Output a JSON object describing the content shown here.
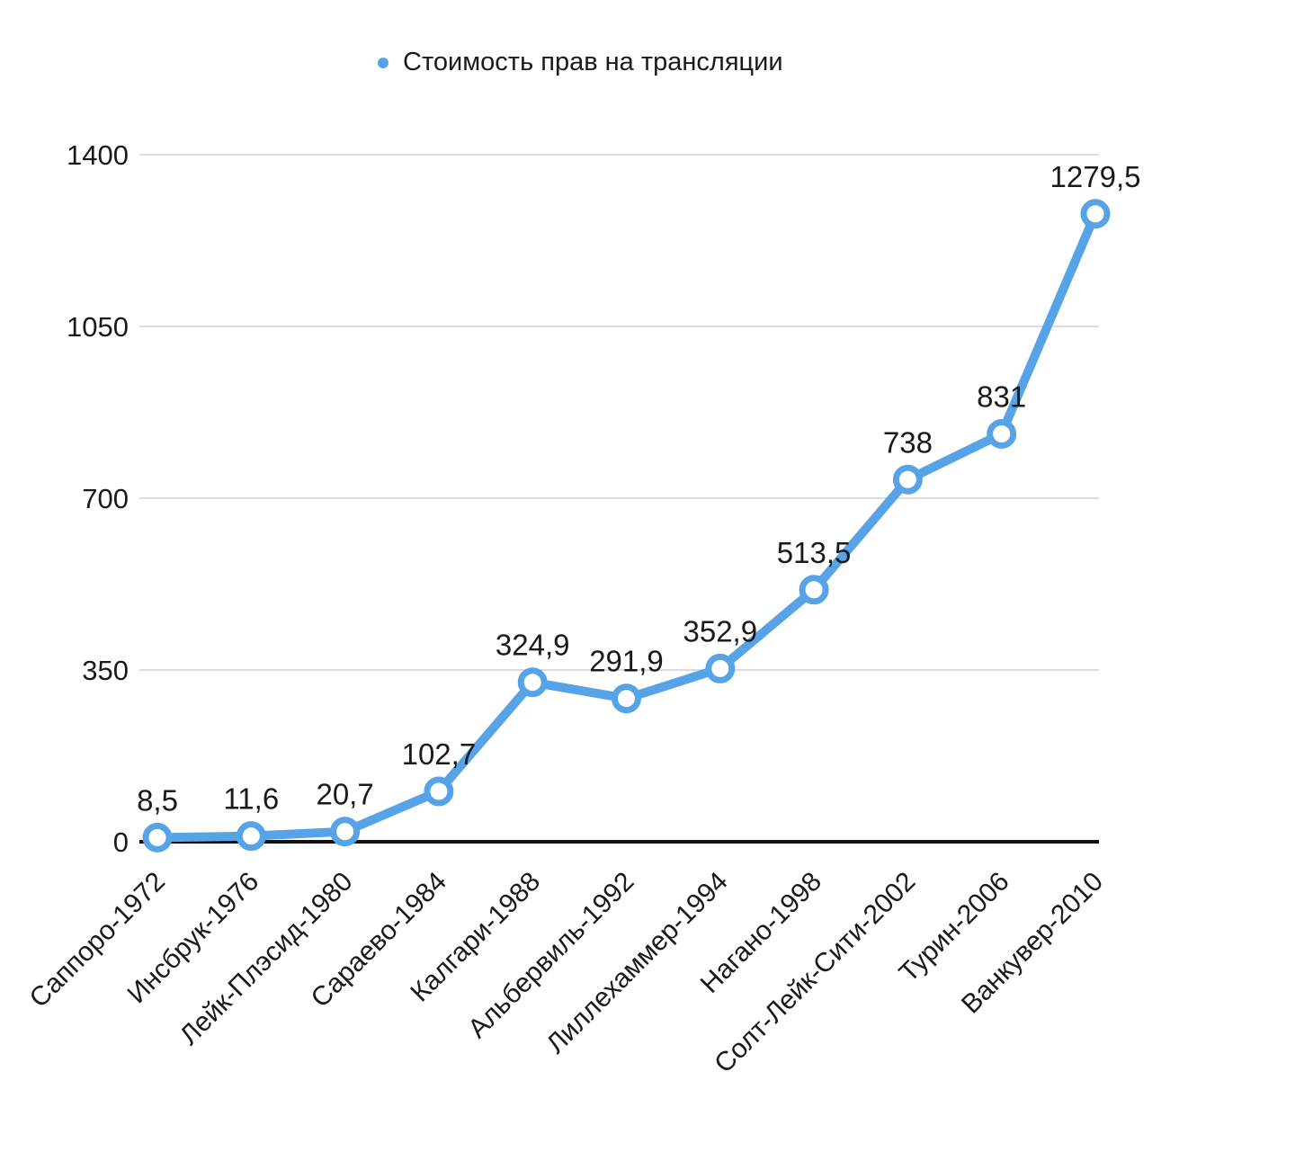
{
  "chart_data": {
    "type": "line",
    "legend": "Стоимость прав на трансляции",
    "categories": [
      "Саппоро-1972",
      "Инсбрук-1976",
      "Лейк-Плэсид-1980",
      "Сараево-1984",
      "Калгари-1988",
      "Альбервиль-1992",
      "Лиллехаммер-1994",
      "Нагано-1998",
      "Солт-Лейк-Сити-2002",
      "Турин-2006",
      "Ванкувер-2010"
    ],
    "values": [
      8.5,
      11.6,
      20.7,
      102.7,
      324.9,
      291.9,
      352.9,
      513.5,
      738,
      831,
      1279.5
    ],
    "value_labels": [
      "8,5",
      "11,6",
      "20,7",
      "102,7",
      "324,9",
      "291,9",
      "352,9",
      "513,5",
      "738",
      "831",
      "1279,5"
    ],
    "yticks": [
      0,
      350,
      700,
      1050,
      1400
    ],
    "ytick_labels": [
      "0",
      "350",
      "700",
      "1050",
      "1400"
    ],
    "ylim": [
      0,
      1400
    ],
    "grid": true,
    "legend_position": "top",
    "xlabel": "",
    "ylabel": "",
    "title": "",
    "colors": {
      "line": "#57A3E8",
      "marker_fill": "#FFFFFF",
      "grid": "#DCDCDC",
      "axis": "#111111",
      "text": "#1A1A1A"
    }
  }
}
